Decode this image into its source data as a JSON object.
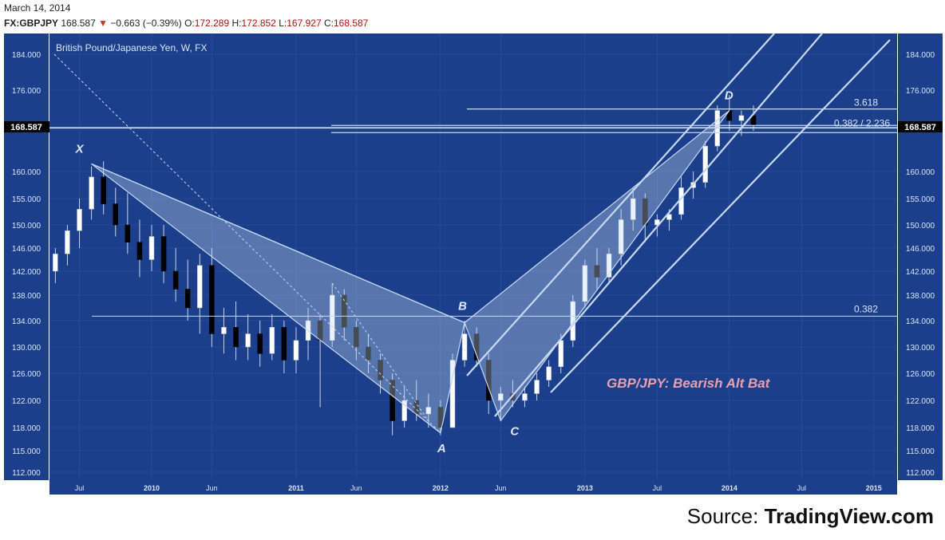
{
  "header": {
    "date": "March 14, 2014",
    "symbol": "FX:GBPJPY",
    "last": "168.587",
    "down_arrow": "▼",
    "change": "−0.663 (−0.39%)",
    "open_label": "O:",
    "open": "172.289",
    "high_label": "H:",
    "high": "172.852",
    "low_label": "L:",
    "low": "167.927",
    "close_label": "C:",
    "close": "168.587"
  },
  "source": {
    "prefix": "Source: ",
    "name": "TradingView.com"
  },
  "colors": {
    "background": "#1b3f8a",
    "grid": "#2f56a3",
    "overlay": "#c9d9f2",
    "bull": "#ffffff",
    "bear": "#000000",
    "pattern_label": "#e8a0b0"
  },
  "chart_data": {
    "type": "candlestick",
    "title": "British Pound/Japanese Yen, W, FX",
    "annotation": "GBP/JPY: Bearish Alt Bat",
    "y_ticks": [
      "112.000",
      "115.000",
      "118.000",
      "122.000",
      "126.000",
      "130.000",
      "134.000",
      "138.000",
      "142.000",
      "146.000",
      "150.000",
      "155.000",
      "160.000",
      "176.000",
      "184.000"
    ],
    "x_ticks": [
      "Jul",
      "2010",
      "Jun",
      "2011",
      "Jun",
      "2012",
      "Jun",
      "2013",
      "Jul",
      "2014",
      "Jul",
      "2015"
    ],
    "last_price_label": "168.587",
    "pattern_points": [
      {
        "label": "X",
        "date": "2009-08",
        "price": 161.5
      },
      {
        "label": "A",
        "date": "2012-01",
        "price": 117.3
      },
      {
        "label": "B",
        "date": "2012-03",
        "price": 133.7
      },
      {
        "label": "C",
        "date": "2012-06",
        "price": 119.0
      },
      {
        "label": "D",
        "date": "2014-01",
        "price": 172.0
      }
    ],
    "fib_levels": [
      {
        "label": "3.618",
        "price": 172.3
      },
      {
        "label": "0.382",
        "price": 134.7
      }
    ],
    "fib_overlapping_labels": "0.382 / 2.236",
    "series": [
      {
        "date": "2009-05",
        "o": 142,
        "h": 146,
        "l": 140,
        "c": 145
      },
      {
        "date": "2009-06",
        "o": 145,
        "h": 150,
        "l": 143,
        "c": 149
      },
      {
        "date": "2009-07",
        "o": 149,
        "h": 155,
        "l": 146,
        "c": 153
      },
      {
        "date": "2009-08",
        "o": 153,
        "h": 161,
        "l": 151,
        "c": 159
      },
      {
        "date": "2009-09",
        "o": 159,
        "h": 162,
        "l": 152,
        "c": 154
      },
      {
        "date": "2009-10",
        "o": 154,
        "h": 157,
        "l": 148,
        "c": 150
      },
      {
        "date": "2009-11",
        "o": 150,
        "h": 156,
        "l": 145,
        "c": 147
      },
      {
        "date": "2009-12",
        "o": 147,
        "h": 151,
        "l": 141,
        "c": 144
      },
      {
        "date": "2010-01",
        "o": 144,
        "h": 150,
        "l": 142,
        "c": 148
      },
      {
        "date": "2010-02",
        "o": 148,
        "h": 150,
        "l": 140,
        "c": 142
      },
      {
        "date": "2010-03",
        "o": 142,
        "h": 146,
        "l": 137,
        "c": 139
      },
      {
        "date": "2010-04",
        "o": 139,
        "h": 144,
        "l": 134,
        "c": 136
      },
      {
        "date": "2010-05",
        "o": 136,
        "h": 145,
        "l": 132,
        "c": 143
      },
      {
        "date": "2010-06",
        "o": 143,
        "h": 146,
        "l": 130,
        "c": 132
      },
      {
        "date": "2010-07",
        "o": 132,
        "h": 136,
        "l": 129,
        "c": 133
      },
      {
        "date": "2010-08",
        "o": 133,
        "h": 137,
        "l": 128,
        "c": 130
      },
      {
        "date": "2010-09",
        "o": 130,
        "h": 135,
        "l": 128,
        "c": 132
      },
      {
        "date": "2010-10",
        "o": 132,
        "h": 134,
        "l": 127,
        "c": 129
      },
      {
        "date": "2010-11",
        "o": 129,
        "h": 135,
        "l": 128,
        "c": 133
      },
      {
        "date": "2010-12",
        "o": 133,
        "h": 134,
        "l": 126,
        "c": 128
      },
      {
        "date": "2011-01",
        "o": 128,
        "h": 133,
        "l": 126,
        "c": 131
      },
      {
        "date": "2011-02",
        "o": 131,
        "h": 136,
        "l": 128,
        "c": 134
      },
      {
        "date": "2011-03",
        "o": 134,
        "h": 135,
        "l": 121,
        "c": 131
      },
      {
        "date": "2011-04",
        "o": 131,
        "h": 140,
        "l": 130,
        "c": 138
      },
      {
        "date": "2011-05",
        "o": 138,
        "h": 139,
        "l": 131,
        "c": 133
      },
      {
        "date": "2011-06",
        "o": 133,
        "h": 134,
        "l": 128,
        "c": 130
      },
      {
        "date": "2011-07",
        "o": 130,
        "h": 132,
        "l": 126,
        "c": 128
      },
      {
        "date": "2011-08",
        "o": 128,
        "h": 129,
        "l": 123,
        "c": 125
      },
      {
        "date": "2011-09",
        "o": 125,
        "h": 126,
        "l": 117,
        "c": 119
      },
      {
        "date": "2011-10",
        "o": 119,
        "h": 124,
        "l": 118,
        "c": 122
      },
      {
        "date": "2011-11",
        "o": 122,
        "h": 125,
        "l": 119,
        "c": 120
      },
      {
        "date": "2011-12",
        "o": 120,
        "h": 123,
        "l": 118,
        "c": 121
      },
      {
        "date": "2012-01",
        "o": 121,
        "h": 122,
        "l": 117,
        "c": 118
      },
      {
        "date": "2012-02",
        "o": 118,
        "h": 129,
        "l": 118,
        "c": 128
      },
      {
        "date": "2012-03",
        "o": 128,
        "h": 134,
        "l": 127,
        "c": 132
      },
      {
        "date": "2012-04",
        "o": 132,
        "h": 133,
        "l": 127,
        "c": 128
      },
      {
        "date": "2012-05",
        "o": 128,
        "h": 129,
        "l": 120,
        "c": 122
      },
      {
        "date": "2012-06",
        "o": 122,
        "h": 124,
        "l": 119,
        "c": 123
      },
      {
        "date": "2012-07",
        "o": 123,
        "h": 125,
        "l": 121,
        "c": 122
      },
      {
        "date": "2012-08",
        "o": 122,
        "h": 124,
        "l": 121,
        "c": 123
      },
      {
        "date": "2012-09",
        "o": 123,
        "h": 126,
        "l": 122,
        "c": 125
      },
      {
        "date": "2012-10",
        "o": 125,
        "h": 128,
        "l": 124,
        "c": 127
      },
      {
        "date": "2012-11",
        "o": 127,
        "h": 132,
        "l": 126,
        "c": 131
      },
      {
        "date": "2012-12",
        "o": 131,
        "h": 138,
        "l": 130,
        "c": 137
      },
      {
        "date": "2013-01",
        "o": 137,
        "h": 144,
        "l": 136,
        "c": 143
      },
      {
        "date": "2013-02",
        "o": 143,
        "h": 146,
        "l": 139,
        "c": 141
      },
      {
        "date": "2013-03",
        "o": 141,
        "h": 146,
        "l": 140,
        "c": 145
      },
      {
        "date": "2013-04",
        "o": 145,
        "h": 153,
        "l": 143,
        "c": 151
      },
      {
        "date": "2013-05",
        "o": 151,
        "h": 157,
        "l": 149,
        "c": 155
      },
      {
        "date": "2013-06",
        "o": 155,
        "h": 156,
        "l": 147,
        "c": 150
      },
      {
        "date": "2013-07",
        "o": 150,
        "h": 152,
        "l": 148,
        "c": 151
      },
      {
        "date": "2013-08",
        "o": 151,
        "h": 153,
        "l": 149,
        "c": 152
      },
      {
        "date": "2013-09",
        "o": 152,
        "h": 159,
        "l": 151,
        "c": 157
      },
      {
        "date": "2013-10",
        "o": 157,
        "h": 160,
        "l": 155,
        "c": 158
      },
      {
        "date": "2013-11",
        "o": 158,
        "h": 166,
        "l": 157,
        "c": 165
      },
      {
        "date": "2013-12",
        "o": 165,
        "h": 173,
        "l": 164,
        "c": 172
      },
      {
        "date": "2014-01",
        "o": 172,
        "h": 175,
        "l": 168,
        "c": 170
      },
      {
        "date": "2014-02",
        "o": 170,
        "h": 172,
        "l": 167,
        "c": 171
      },
      {
        "date": "2014-03",
        "o": 171,
        "h": 173,
        "l": 168,
        "c": 169
      }
    ]
  }
}
